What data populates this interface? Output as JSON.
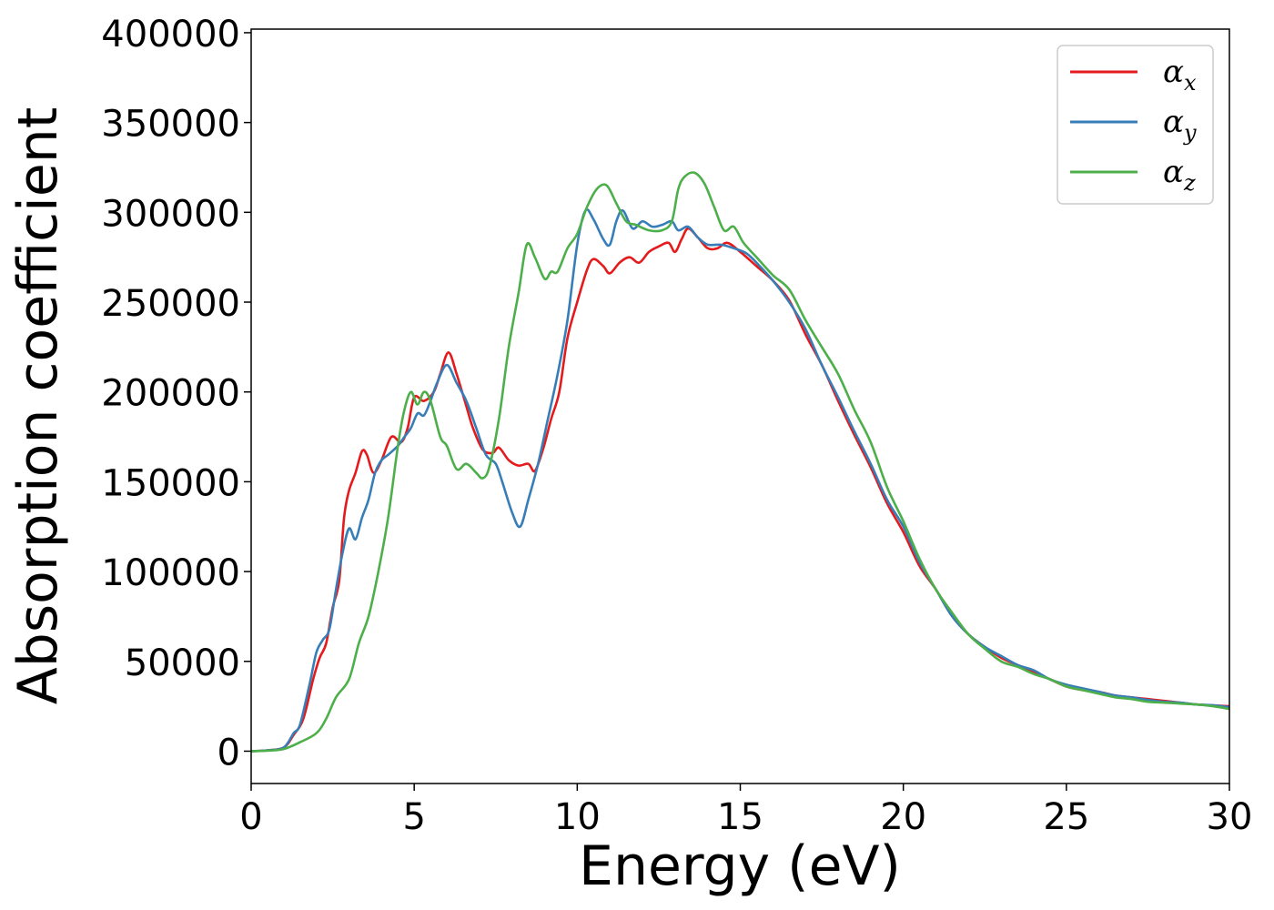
{
  "chart_data": {
    "type": "line",
    "xlabel": "Energy (eV)",
    "ylabel": "Absorption coefficient",
    "xlim": [
      0,
      30
    ],
    "ylim": [
      -18000,
      402000
    ],
    "xticks": [
      0,
      5,
      10,
      15,
      20,
      25,
      30
    ],
    "yticks": [
      0,
      50000,
      100000,
      150000,
      200000,
      250000,
      300000,
      350000,
      400000
    ],
    "grid": false,
    "legend_position": "top-right",
    "series": [
      {
        "name": "α",
        "subscript": "x",
        "color": "#e41a1c",
        "points": [
          [
            0,
            0
          ],
          [
            0.5,
            500
          ],
          [
            1,
            2000
          ],
          [
            1.3,
            9000
          ],
          [
            1.6,
            18000
          ],
          [
            1.9,
            40000
          ],
          [
            2.1,
            52000
          ],
          [
            2.3,
            60000
          ],
          [
            2.5,
            80000
          ],
          [
            2.7,
            95000
          ],
          [
            2.85,
            130000
          ],
          [
            3.0,
            145000
          ],
          [
            3.2,
            155000
          ],
          [
            3.4,
            167000
          ],
          [
            3.55,
            165000
          ],
          [
            3.75,
            155000
          ],
          [
            4.0,
            162000
          ],
          [
            4.3,
            175000
          ],
          [
            4.6,
            172000
          ],
          [
            4.8,
            180000
          ],
          [
            5.0,
            197000
          ],
          [
            5.3,
            195000
          ],
          [
            5.6,
            200000
          ],
          [
            5.8,
            210000
          ],
          [
            6.05,
            222000
          ],
          [
            6.3,
            210000
          ],
          [
            6.6,
            192000
          ],
          [
            6.8,
            180000
          ],
          [
            7.1,
            168000
          ],
          [
            7.4,
            166000
          ],
          [
            7.6,
            169000
          ],
          [
            7.9,
            162000
          ],
          [
            8.2,
            159000
          ],
          [
            8.5,
            160000
          ],
          [
            8.7,
            156000
          ],
          [
            8.95,
            168000
          ],
          [
            9.2,
            185000
          ],
          [
            9.45,
            200000
          ],
          [
            9.7,
            230000
          ],
          [
            10.0,
            250000
          ],
          [
            10.3,
            268000
          ],
          [
            10.5,
            274000
          ],
          [
            10.8,
            270000
          ],
          [
            11.0,
            266000
          ],
          [
            11.3,
            272000
          ],
          [
            11.6,
            275000
          ],
          [
            11.9,
            272000
          ],
          [
            12.2,
            278000
          ],
          [
            12.5,
            281000
          ],
          [
            12.8,
            283000
          ],
          [
            13.0,
            278000
          ],
          [
            13.2,
            285000
          ],
          [
            13.4,
            291000
          ],
          [
            13.7,
            286000
          ],
          [
            14.0,
            280000
          ],
          [
            14.3,
            280000
          ],
          [
            14.6,
            283000
          ],
          [
            15.0,
            278000
          ],
          [
            15.5,
            270000
          ],
          [
            16.0,
            262000
          ],
          [
            16.5,
            251000
          ],
          [
            17.0,
            232000
          ],
          [
            17.5,
            215000
          ],
          [
            18.0,
            195000
          ],
          [
            18.5,
            176000
          ],
          [
            19.0,
            158000
          ],
          [
            19.5,
            138000
          ],
          [
            20.0,
            122000
          ],
          [
            20.5,
            103000
          ],
          [
            21.0,
            90000
          ],
          [
            21.5,
            75000
          ],
          [
            22.0,
            65000
          ],
          [
            22.5,
            58000
          ],
          [
            23.0,
            52000
          ],
          [
            23.5,
            48000
          ],
          [
            24.0,
            44000
          ],
          [
            24.5,
            40000
          ],
          [
            25.0,
            36000
          ],
          [
            25.5,
            34000
          ],
          [
            26.0,
            33000
          ],
          [
            26.5,
            31000
          ],
          [
            27.0,
            30000
          ],
          [
            27.5,
            29000
          ],
          [
            28.0,
            28000
          ],
          [
            28.5,
            27000
          ],
          [
            29.0,
            26000
          ],
          [
            29.5,
            25500
          ],
          [
            30.0,
            25000
          ]
        ]
      },
      {
        "name": "α",
        "subscript": "y",
        "color": "#377eb8",
        "points": [
          [
            0,
            0
          ],
          [
            0.5,
            500
          ],
          [
            1,
            2000
          ],
          [
            1.3,
            10000
          ],
          [
            1.5,
            15000
          ],
          [
            1.8,
            38000
          ],
          [
            2.0,
            55000
          ],
          [
            2.2,
            62000
          ],
          [
            2.4,
            68000
          ],
          [
            2.6,
            90000
          ],
          [
            2.8,
            110000
          ],
          [
            3.0,
            124000
          ],
          [
            3.2,
            118000
          ],
          [
            3.4,
            130000
          ],
          [
            3.6,
            140000
          ],
          [
            3.8,
            155000
          ],
          [
            4.0,
            162000
          ],
          [
            4.2,
            165000
          ],
          [
            4.5,
            170000
          ],
          [
            4.7,
            175000
          ],
          [
            4.9,
            180000
          ],
          [
            5.1,
            188000
          ],
          [
            5.3,
            187000
          ],
          [
            5.5,
            195000
          ],
          [
            5.7,
            205000
          ],
          [
            6.0,
            215000
          ],
          [
            6.3,
            205000
          ],
          [
            6.6,
            195000
          ],
          [
            6.9,
            180000
          ],
          [
            7.2,
            165000
          ],
          [
            7.5,
            160000
          ],
          [
            7.7,
            150000
          ],
          [
            8.0,
            133000
          ],
          [
            8.25,
            125000
          ],
          [
            8.5,
            140000
          ],
          [
            8.8,
            160000
          ],
          [
            9.1,
            185000
          ],
          [
            9.4,
            210000
          ],
          [
            9.7,
            240000
          ],
          [
            10.0,
            282000
          ],
          [
            10.25,
            301000
          ],
          [
            10.5,
            296000
          ],
          [
            10.8,
            285000
          ],
          [
            11.0,
            282000
          ],
          [
            11.2,
            295000
          ],
          [
            11.4,
            301000
          ],
          [
            11.7,
            291000
          ],
          [
            12.0,
            295000
          ],
          [
            12.3,
            292000
          ],
          [
            12.6,
            293000
          ],
          [
            12.9,
            295000
          ],
          [
            13.1,
            290000
          ],
          [
            13.4,
            292000
          ],
          [
            13.7,
            286000
          ],
          [
            14.0,
            282000
          ],
          [
            14.4,
            282000
          ],
          [
            14.8,
            280000
          ],
          [
            15.2,
            277000
          ],
          [
            15.6,
            270000
          ],
          [
            16.0,
            262000
          ],
          [
            16.5,
            250000
          ],
          [
            17.0,
            235000
          ],
          [
            17.5,
            215000
          ],
          [
            18.0,
            197000
          ],
          [
            18.5,
            178000
          ],
          [
            19.0,
            160000
          ],
          [
            19.5,
            140000
          ],
          [
            20.0,
            125000
          ],
          [
            20.5,
            105000
          ],
          [
            21.0,
            90000
          ],
          [
            21.5,
            75000
          ],
          [
            22.0,
            65000
          ],
          [
            22.5,
            58000
          ],
          [
            23.0,
            53000
          ],
          [
            23.5,
            48000
          ],
          [
            24.0,
            45000
          ],
          [
            24.5,
            40000
          ],
          [
            25.0,
            37000
          ],
          [
            25.5,
            35000
          ],
          [
            26.0,
            33000
          ],
          [
            26.5,
            31000
          ],
          [
            27.0,
            30000
          ],
          [
            27.5,
            28500
          ],
          [
            28.0,
            27500
          ],
          [
            28.5,
            27000
          ],
          [
            29.0,
            26000
          ],
          [
            29.5,
            25500
          ],
          [
            30.0,
            24500
          ]
        ]
      },
      {
        "name": "α",
        "subscript": "z",
        "color": "#4daf4a",
        "points": [
          [
            0,
            0
          ],
          [
            0.5,
            300
          ],
          [
            1,
            1200
          ],
          [
            1.5,
            5000
          ],
          [
            2.0,
            10000
          ],
          [
            2.3,
            18000
          ],
          [
            2.6,
            30000
          ],
          [
            3.0,
            40000
          ],
          [
            3.3,
            60000
          ],
          [
            3.6,
            75000
          ],
          [
            3.9,
            100000
          ],
          [
            4.2,
            130000
          ],
          [
            4.5,
            170000
          ],
          [
            4.7,
            190000
          ],
          [
            4.9,
            200000
          ],
          [
            5.1,
            193000
          ],
          [
            5.3,
            200000
          ],
          [
            5.5,
            195000
          ],
          [
            5.8,
            175000
          ],
          [
            6.0,
            170000
          ],
          [
            6.3,
            157000
          ],
          [
            6.6,
            160000
          ],
          [
            6.9,
            155000
          ],
          [
            7.1,
            152000
          ],
          [
            7.3,
            158000
          ],
          [
            7.6,
            185000
          ],
          [
            7.9,
            225000
          ],
          [
            8.2,
            255000
          ],
          [
            8.45,
            282000
          ],
          [
            8.7,
            275000
          ],
          [
            9.0,
            263000
          ],
          [
            9.2,
            267000
          ],
          [
            9.4,
            267000
          ],
          [
            9.7,
            280000
          ],
          [
            10.0,
            288000
          ],
          [
            10.3,
            303000
          ],
          [
            10.6,
            313000
          ],
          [
            10.9,
            315000
          ],
          [
            11.2,
            305000
          ],
          [
            11.5,
            295000
          ],
          [
            11.8,
            293000
          ],
          [
            12.2,
            290000
          ],
          [
            12.6,
            290000
          ],
          [
            12.9,
            295000
          ],
          [
            13.1,
            313000
          ],
          [
            13.3,
            320000
          ],
          [
            13.6,
            322000
          ],
          [
            13.9,
            316000
          ],
          [
            14.2,
            303000
          ],
          [
            14.5,
            290000
          ],
          [
            14.8,
            292000
          ],
          [
            15.1,
            283000
          ],
          [
            15.5,
            275000
          ],
          [
            16.0,
            265000
          ],
          [
            16.5,
            257000
          ],
          [
            17.0,
            240000
          ],
          [
            17.5,
            225000
          ],
          [
            18.0,
            210000
          ],
          [
            18.5,
            190000
          ],
          [
            19.0,
            172000
          ],
          [
            19.5,
            147000
          ],
          [
            20.0,
            128000
          ],
          [
            20.5,
            107000
          ],
          [
            21.0,
            90000
          ],
          [
            21.5,
            77000
          ],
          [
            22.0,
            65000
          ],
          [
            22.5,
            57000
          ],
          [
            23.0,
            50000
          ],
          [
            23.5,
            47000
          ],
          [
            24.0,
            43000
          ],
          [
            24.5,
            40000
          ],
          [
            25.0,
            36000
          ],
          [
            25.5,
            34000
          ],
          [
            26.0,
            32000
          ],
          [
            26.5,
            30000
          ],
          [
            27.0,
            29000
          ],
          [
            27.5,
            27500
          ],
          [
            28.0,
            27000
          ],
          [
            28.5,
            26500
          ],
          [
            29.0,
            26000
          ],
          [
            29.5,
            25000
          ],
          [
            30.0,
            23500
          ]
        ]
      }
    ]
  }
}
